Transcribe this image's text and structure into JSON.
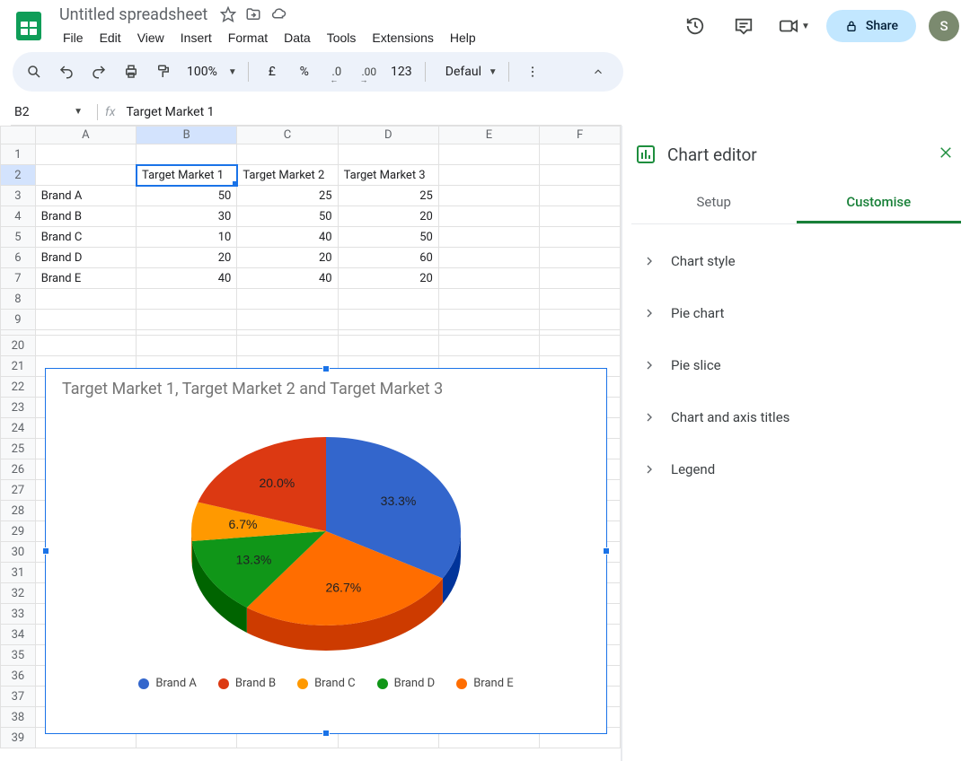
{
  "doc": {
    "title": "Untitled spreadsheet"
  },
  "menu": {
    "items": [
      "File",
      "Edit",
      "View",
      "Insert",
      "Format",
      "Data",
      "Tools",
      "Extensions",
      "Help"
    ]
  },
  "titlebar": {
    "share": "Share",
    "avatar": "S"
  },
  "toolbar": {
    "zoom": "100%",
    "currency": "£",
    "percent": "%",
    "dec_dec": ".0",
    "inc_dec": ".00",
    "num123": "123",
    "font": "Defaul..."
  },
  "formula": {
    "cell": "B2",
    "fx": "fx",
    "value": "Target Market 1"
  },
  "columns": [
    "A",
    "B",
    "C",
    "D",
    "E",
    "F"
  ],
  "table": {
    "headers": [
      "",
      "Target Market 1",
      "Target Market 2",
      "Target Market 3"
    ],
    "rows": [
      [
        "Brand A",
        "50",
        "25",
        "25"
      ],
      [
        "Brand B",
        "30",
        "50",
        "20"
      ],
      [
        "Brand C",
        "10",
        "40",
        "50"
      ],
      [
        "Brand D",
        "20",
        "20",
        "60"
      ],
      [
        "Brand E",
        "40",
        "40",
        "20"
      ]
    ]
  },
  "chart": {
    "title": "Target Market 1, Target Market 2 and Target Market 3",
    "slices": [
      {
        "label": "Brand A",
        "pct": "33.3%",
        "value": 33.33,
        "color": "#3366cc"
      },
      {
        "label": "Brand E",
        "pct": "26.7%",
        "value": 26.67,
        "color": "#ff6d00"
      },
      {
        "label": "Brand D",
        "pct": "13.3%",
        "value": 13.33,
        "color": "#109618"
      },
      {
        "label": "Brand C",
        "pct": "6.7%",
        "value": 6.67,
        "color": "#ff9900"
      },
      {
        "label": "Brand B",
        "pct": "20.0%",
        "value": 20.0,
        "color": "#dc3912"
      }
    ],
    "legend": [
      {
        "label": "Brand A",
        "color": "#3366cc"
      },
      {
        "label": "Brand B",
        "color": "#dc3912"
      },
      {
        "label": "Brand C",
        "color": "#ff9900"
      },
      {
        "label": "Brand D",
        "color": "#109618"
      },
      {
        "label": "Brand E",
        "color": "#ff6d00"
      }
    ]
  },
  "editor": {
    "title": "Chart editor",
    "tabs": {
      "setup": "Setup",
      "customise": "Customise"
    },
    "sections": [
      "Chart style",
      "Pie chart",
      "Pie slice",
      "Chart and axis titles",
      "Legend"
    ]
  }
}
